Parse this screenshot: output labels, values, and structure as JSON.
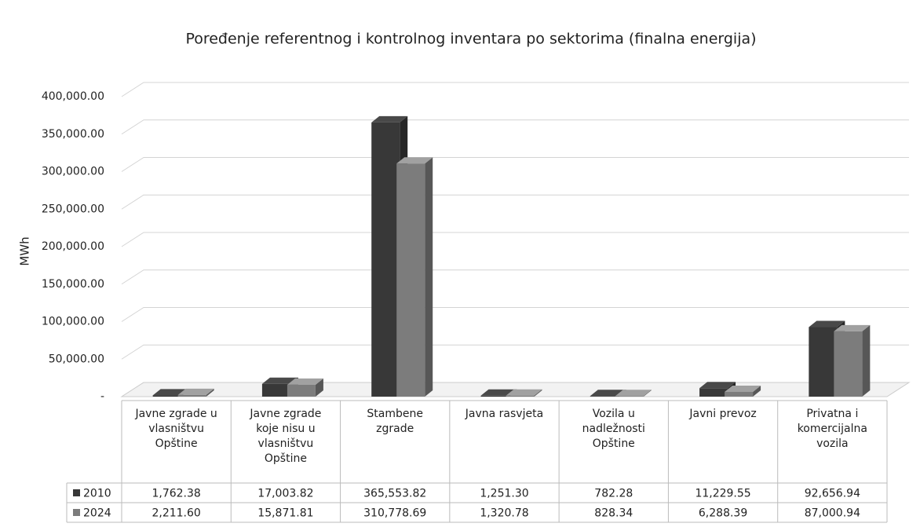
{
  "chart_data": {
    "type": "bar3d",
    "title": "Poređenje referentnog i kontrolnog inventara po sektorima (finalna energija)",
    "y_label": "MWh",
    "categories": [
      "Javne zgrade u vlasništvu Opštine",
      "Javne zgrade koje nisu u vlasništvu Opštine",
      "Stambene zgrade",
      "Javna rasvjeta",
      "Vozila u nadležnosti Opštine",
      "Javni prevoz",
      "Privatna i komercijalna vozila"
    ],
    "series": [
      {
        "name": "2010",
        "color": "#383838",
        "values": [
          1762.38,
          17003.82,
          365553.82,
          1251.3,
          782.28,
          11229.55,
          92656.94
        ],
        "value_labels": [
          "1,762.38",
          "17,003.82",
          "365,553.82",
          "1,251.30",
          "782.28",
          "11,229.55",
          "92,656.94"
        ]
      },
      {
        "name": "2024",
        "color": "#7c7c7c",
        "values": [
          2211.6,
          15871.81,
          310778.69,
          1320.78,
          828.34,
          6288.39,
          87000.94
        ],
        "value_labels": [
          "2,211.60",
          "15,871.81",
          "310,778.69",
          "1,320.78",
          "828.34",
          "6,288.39",
          "87,000.94"
        ]
      }
    ],
    "ylim": [
      0,
      400000
    ],
    "yticks": [
      {
        "value": 0,
        "label": "-"
      },
      {
        "value": 50000,
        "label": "50,000.00"
      },
      {
        "value": 100000,
        "label": "100,000.00"
      },
      {
        "value": 150000,
        "label": "150,000.00"
      },
      {
        "value": 200000,
        "label": "200,000.00"
      },
      {
        "value": 250000,
        "label": "250,000.00"
      },
      {
        "value": 300000,
        "label": "300,000.00"
      },
      {
        "value": 350000,
        "label": "350,000.00"
      },
      {
        "value": 400000,
        "label": "400,000.00"
      }
    ],
    "grid": true
  }
}
